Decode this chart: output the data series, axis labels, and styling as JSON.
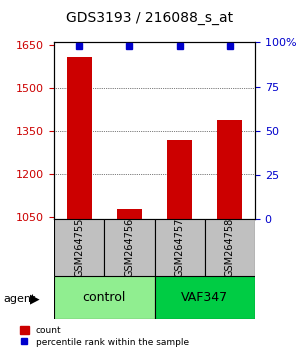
{
  "title": "GDS3193 / 216088_s_at",
  "samples": [
    "GSM264755",
    "GSM264756",
    "GSM264757",
    "GSM264758"
  ],
  "counts": [
    1610,
    1075,
    1320,
    1390
  ],
  "percentiles": [
    98,
    98,
    98,
    98
  ],
  "groups": [
    "control",
    "control",
    "VAF347",
    "VAF347"
  ],
  "group_colors": {
    "control": "#90EE90",
    "VAF347": "#00CC00"
  },
  "ylim_left": [
    1040,
    1660
  ],
  "yticks_left": [
    1050,
    1200,
    1350,
    1500,
    1650
  ],
  "ylim_right": [
    0,
    100
  ],
  "yticks_right": [
    0,
    25,
    50,
    75,
    100
  ],
  "bar_color": "#CC0000",
  "dot_color": "#0000CC",
  "bar_width": 0.5,
  "grid_ticks": [
    1200,
    1350,
    1500
  ],
  "agent_label": "agent",
  "legend_count_label": "count",
  "legend_pct_label": "percentile rank within the sample",
  "left_axis_color": "#CC0000",
  "right_axis_color": "#0000CC",
  "group_label_fontsize": 9,
  "sample_label_fontsize": 7,
  "title_fontsize": 10
}
